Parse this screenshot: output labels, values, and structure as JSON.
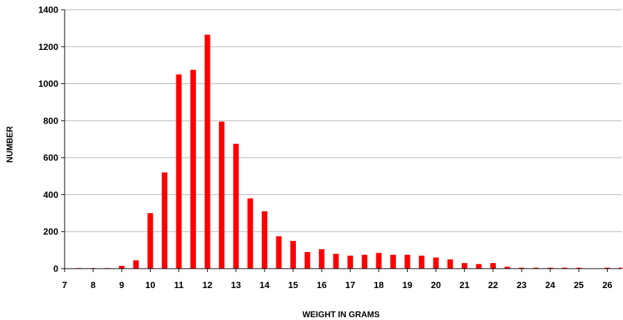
{
  "chart_data": {
    "type": "bar",
    "title": "",
    "xlabel": "WEIGHT IN GRAMS",
    "ylabel": "NUMBER",
    "ylim": [
      0,
      1400
    ],
    "xlim": [
      7,
      26.5
    ],
    "yticks": [
      0,
      200,
      400,
      600,
      800,
      1000,
      1200,
      1400
    ],
    "xticks": [
      7,
      8,
      9,
      10,
      11,
      12,
      13,
      14,
      15,
      16,
      17,
      18,
      19,
      20,
      21,
      22,
      23,
      24,
      25,
      26
    ],
    "grid": "horizontal",
    "bar_color": "#ff0000",
    "x": [
      7.5,
      8,
      8.5,
      9,
      9.5,
      10,
      10.5,
      11,
      11.5,
      12,
      12.5,
      13,
      13.5,
      14,
      14.5,
      15,
      15.5,
      16,
      16.5,
      17,
      17.5,
      18,
      18.5,
      19,
      19.5,
      20,
      20.5,
      21,
      21.5,
      22,
      22.5,
      23,
      23.5,
      24,
      24.5,
      25,
      26,
      26.5
    ],
    "values": [
      3,
      3,
      3,
      15,
      45,
      300,
      520,
      1050,
      1075,
      1265,
      795,
      675,
      380,
      310,
      175,
      150,
      90,
      105,
      80,
      70,
      75,
      85,
      75,
      75,
      70,
      60,
      50,
      30,
      25,
      30,
      10,
      5,
      5,
      5,
      5,
      5,
      5,
      5
    ]
  }
}
